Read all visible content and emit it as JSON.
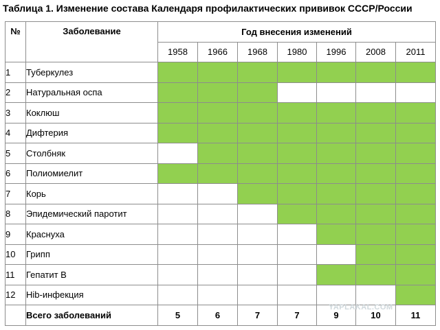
{
  "title": "Таблица 1. Изменение состава Календаря профилактических прививок СССР/России",
  "header": {
    "num_label": "№",
    "disease_label": "Заболевание",
    "years_label": "Год внесения изменений"
  },
  "years": [
    "1958",
    "1966",
    "1968",
    "1980",
    "1996",
    "2008",
    "2011"
  ],
  "rows": [
    {
      "num": "1",
      "name": "Туберкулез",
      "cells": [
        1,
        1,
        1,
        1,
        1,
        1,
        1
      ]
    },
    {
      "num": "2",
      "name": "Натуральная оспа",
      "cells": [
        1,
        1,
        1,
        0,
        0,
        0,
        0
      ]
    },
    {
      "num": "3",
      "name": "Коклюш",
      "cells": [
        1,
        1,
        1,
        1,
        1,
        1,
        1
      ]
    },
    {
      "num": "4",
      "name": "Дифтерия",
      "cells": [
        1,
        1,
        1,
        1,
        1,
        1,
        1
      ]
    },
    {
      "num": "5",
      "name": "Столбняк",
      "cells": [
        0,
        1,
        1,
        1,
        1,
        1,
        1
      ]
    },
    {
      "num": "6",
      "name": "Полиомиелит",
      "cells": [
        1,
        1,
        1,
        1,
        1,
        1,
        1
      ]
    },
    {
      "num": "7",
      "name": "Корь",
      "cells": [
        0,
        0,
        1,
        1,
        1,
        1,
        1
      ]
    },
    {
      "num": "8",
      "name": "Эпидемический паротит",
      "cells": [
        0,
        0,
        0,
        1,
        1,
        1,
        1
      ]
    },
    {
      "num": "9",
      "name": "Краснуха",
      "cells": [
        0,
        0,
        0,
        0,
        1,
        1,
        1
      ]
    },
    {
      "num": "10",
      "name": "Грипп",
      "cells": [
        0,
        0,
        0,
        0,
        0,
        1,
        1
      ]
    },
    {
      "num": "11",
      "name": "Гепатит В",
      "cells": [
        0,
        0,
        0,
        0,
        1,
        1,
        1
      ]
    },
    {
      "num": "12",
      "name": "Hib-инфекция",
      "cells": [
        0,
        0,
        0,
        0,
        0,
        0,
        1
      ]
    }
  ],
  "totals": {
    "label": "Всего заболеваний",
    "values": [
      "5",
      "6",
      "7",
      "7",
      "9",
      "10",
      "11"
    ]
  },
  "colors": {
    "filled": "#92d050",
    "empty": "#ffffff",
    "border": "#8c8c8c"
  },
  "watermark": "YAPLAKAL.COM"
}
